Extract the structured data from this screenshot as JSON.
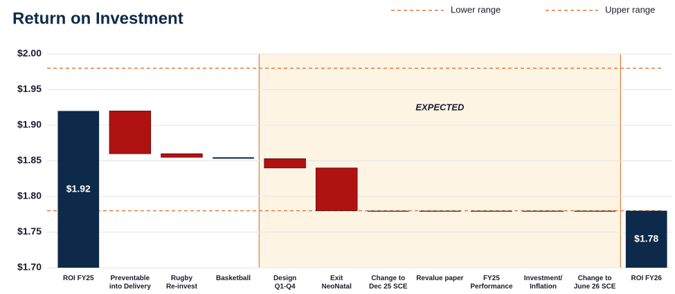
{
  "chart_data": {
    "type": "waterfall",
    "title": "Return on Investment",
    "categories": [
      "ROI FY25",
      "Preventable\ninto Delivery",
      "Rugby\nRe-invest",
      "Basketball",
      "Design\nQ1-Q4",
      "Exit\nNeoNatal",
      "Change to\nDec 25 SCE",
      "Revalue paper",
      "FY25\nPerformance",
      "Investment/\nInflation",
      "Change to\nJune 26 SCE",
      "ROI FY26"
    ],
    "values": [
      1.92,
      -0.06,
      -0.005,
      -0.002,
      -0.013,
      -0.06,
      0,
      0,
      0,
      0,
      0,
      1.78
    ],
    "value_labels": [
      "$1.92",
      null,
      null,
      null,
      null,
      null,
      null,
      null,
      null,
      null,
      null,
      "$1.78"
    ],
    "total_color": "#0d2a4a",
    "decrease_color": "#b01212",
    "ylim": [
      1.7,
      2.0
    ],
    "yticks": [
      {
        "value": 1.7,
        "label": "$1.70"
      },
      {
        "value": 1.75,
        "label": "$1.75"
      },
      {
        "value": 1.8,
        "label": "$1.80"
      },
      {
        "value": 1.85,
        "label": "$1.85"
      },
      {
        "value": 1.9,
        "label": "$1.90"
      },
      {
        "value": 1.95,
        "label": "$1.95"
      },
      {
        "value": 2.0,
        "label": "$2.00"
      }
    ],
    "grid": true,
    "reference_lines": [
      {
        "name": "Lower range",
        "value": 1.78,
        "color": "#e07b39"
      },
      {
        "name": "Upper range",
        "value": 1.98,
        "color": "#e07b39"
      }
    ],
    "region": {
      "label": "EXPECTED",
      "from": "Design\nQ1-Q4",
      "to": "Change to\nJune 26 SCE",
      "color": "#fdf4e4",
      "edge_color": "#e07b39"
    }
  }
}
